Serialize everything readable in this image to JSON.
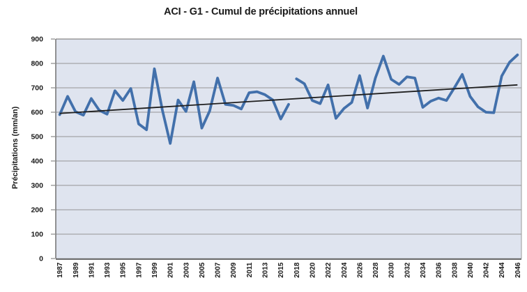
{
  "chart_data": {
    "type": "line",
    "title": "ACI - G1 - Cumul de précipitations annuel",
    "xlabel": "",
    "ylabel": "Précipitations (mm/an)",
    "ylim": [
      0,
      900
    ],
    "yticks": [
      0,
      100,
      200,
      300,
      400,
      500,
      600,
      700,
      800,
      900
    ],
    "grid": true,
    "legend": "none",
    "series": [
      {
        "name": "1987-2016",
        "x": [
          1987,
          1988,
          1989,
          1990,
          1991,
          1992,
          1993,
          1994,
          1995,
          1996,
          1997,
          1998,
          1999,
          2000,
          2001,
          2002,
          2003,
          2004,
          2005,
          2006,
          2007,
          2008,
          2009,
          2010,
          2011,
          2012,
          2013,
          2014,
          2015,
          2016
        ],
        "values": [
          590,
          665,
          602,
          588,
          656,
          608,
          592,
          688,
          648,
          697,
          552,
          528,
          778,
          610,
          472,
          650,
          603,
          725,
          535,
          605,
          740,
          632,
          628,
          613,
          680,
          684,
          672,
          650,
          572,
          632
        ]
      },
      {
        "name": "2018-2046",
        "x": [
          2018,
          2019,
          2020,
          2021,
          2022,
          2023,
          2024,
          2025,
          2026,
          2027,
          2028,
          2029,
          2030,
          2031,
          2032,
          2033,
          2034,
          2035,
          2036,
          2037,
          2038,
          2039,
          2040,
          2041,
          2042,
          2043,
          2044,
          2045,
          2046
        ],
        "values": [
          737,
          717,
          648,
          635,
          712,
          575,
          615,
          640,
          750,
          617,
          740,
          830,
          735,
          714,
          745,
          740,
          620,
          645,
          658,
          648,
          700,
          755,
          665,
          622,
          600,
          598,
          748,
          805,
          835
        ]
      }
    ],
    "trendline": {
      "x": [
        1987,
        2046
      ],
      "values": [
        595,
        712
      ]
    },
    "xtick_labels": [
      "1987",
      "1989",
      "1991",
      "1993",
      "1995",
      "1997",
      "1999",
      "2001",
      "2003",
      "2005",
      "2007",
      "2009",
      "2011",
      "2013",
      "2015",
      "2018",
      "2020",
      "2022",
      "2024",
      "2026",
      "2028",
      "2030",
      "2032",
      "2034",
      "2036",
      "2038",
      "2040",
      "2042",
      "2044",
      "2046"
    ],
    "colors": {
      "series_line": "#4270ab",
      "trendline": "#1f1f1f",
      "plot_background": "#dfe4ef",
      "gridline": "#959595",
      "axis_line": "#5f5f5f",
      "border": "#9a9a9a",
      "text": "#1a1a1a"
    }
  }
}
